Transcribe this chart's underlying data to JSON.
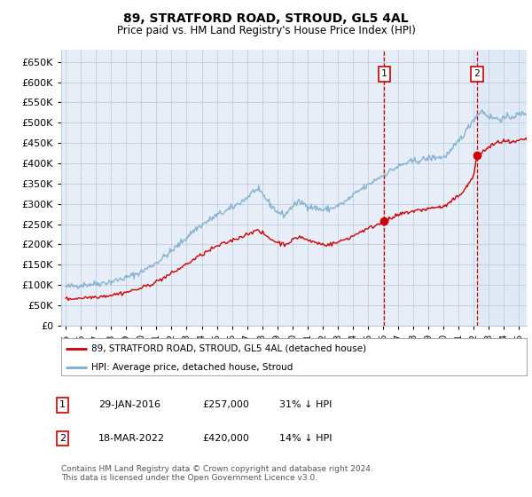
{
  "title": "89, STRATFORD ROAD, STROUD, GL5 4AL",
  "subtitle": "Price paid vs. HM Land Registry's House Price Index (HPI)",
  "red_label": "89, STRATFORD ROAD, STROUD, GL5 4AL (detached house)",
  "blue_label": "HPI: Average price, detached house, Stroud",
  "annotation1": {
    "num": "1",
    "date": "29-JAN-2016",
    "price": "£257,000",
    "hpi": "31% ↓ HPI",
    "x_year": 2016.08,
    "y_val": 257000
  },
  "annotation2": {
    "num": "2",
    "date": "18-MAR-2022",
    "price": "£420,000",
    "hpi": "14% ↓ HPI",
    "x_year": 2022.21,
    "y_val": 420000
  },
  "footer": "Contains HM Land Registry data © Crown copyright and database right 2024.\nThis data is licensed under the Open Government Licence v3.0.",
  "ylim": [
    0,
    680000
  ],
  "yticks": [
    0,
    50000,
    100000,
    150000,
    200000,
    250000,
    300000,
    350000,
    400000,
    450000,
    500000,
    550000,
    600000,
    650000
  ],
  "ytick_labels": [
    "£0",
    "£50K",
    "£100K",
    "£150K",
    "£200K",
    "£250K",
    "£300K",
    "£350K",
    "£400K",
    "£450K",
    "£500K",
    "£550K",
    "£600K",
    "£650K"
  ],
  "xlim_start": 1994.7,
  "xlim_end": 2025.5,
  "xtick_years": [
    1995,
    1996,
    1997,
    1998,
    1999,
    2000,
    2001,
    2002,
    2003,
    2004,
    2005,
    2006,
    2007,
    2008,
    2009,
    2010,
    2011,
    2012,
    2013,
    2014,
    2015,
    2016,
    2017,
    2018,
    2019,
    2020,
    2021,
    2022,
    2023,
    2024,
    2025
  ],
  "bg_color": "#e8eef8",
  "bg_color_right": "#dce6f5",
  "grid_color": "#b8c8d8",
  "red_color": "#cc0000",
  "blue_color": "#7aadcc",
  "vline_color": "#cc0000",
  "box_color": "#cc0000",
  "legend_border": "#aaaaaa"
}
